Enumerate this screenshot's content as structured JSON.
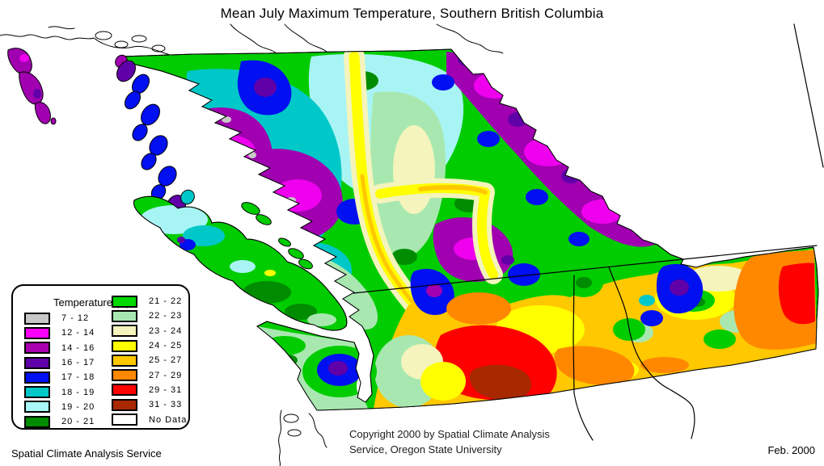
{
  "page_title": "Mean July Maximum Temperature, Southern British Columbia",
  "legend": {
    "title": "Temperature (C)",
    "left_items": [
      {
        "label": "7 - 12",
        "color": "#C8C8C8"
      },
      {
        "label": "12 - 14",
        "color": "#FF00FF"
      },
      {
        "label": "14 - 16",
        "color": "#A800B0"
      },
      {
        "label": "16 - 17",
        "color": "#6000A8"
      },
      {
        "label": "17 - 18",
        "color": "#0010F0"
      },
      {
        "label": "18 - 19",
        "color": "#00C8C8"
      },
      {
        "label": "19 - 20",
        "color": "#A8F8F8"
      },
      {
        "label": "20 - 21",
        "color": "#008C00"
      }
    ],
    "right_items": [
      {
        "label": "21 - 22",
        "color": "#00D800"
      },
      {
        "label": "22 - 23",
        "color": "#A8E8B0"
      },
      {
        "label": "23 - 24",
        "color": "#F4F4BC"
      },
      {
        "label": "24 - 25",
        "color": "#FFFF00"
      },
      {
        "label": "25 - 27",
        "color": "#FFC800"
      },
      {
        "label": "27 - 29",
        "color": "#FF8800"
      },
      {
        "label": "29 - 31",
        "color": "#FF0000"
      },
      {
        "label": "31 - 33",
        "color": "#A82800"
      },
      {
        "label": "No Data",
        "color": "#FFFFFF"
      }
    ]
  },
  "footer": {
    "service": "Spatial Climate Analysis Service",
    "copyright_line1": "Copyright 2000 by Spatial Climate Analysis",
    "copyright_line2": "Service, Oregon State University",
    "date": "Feb. 2000"
  }
}
